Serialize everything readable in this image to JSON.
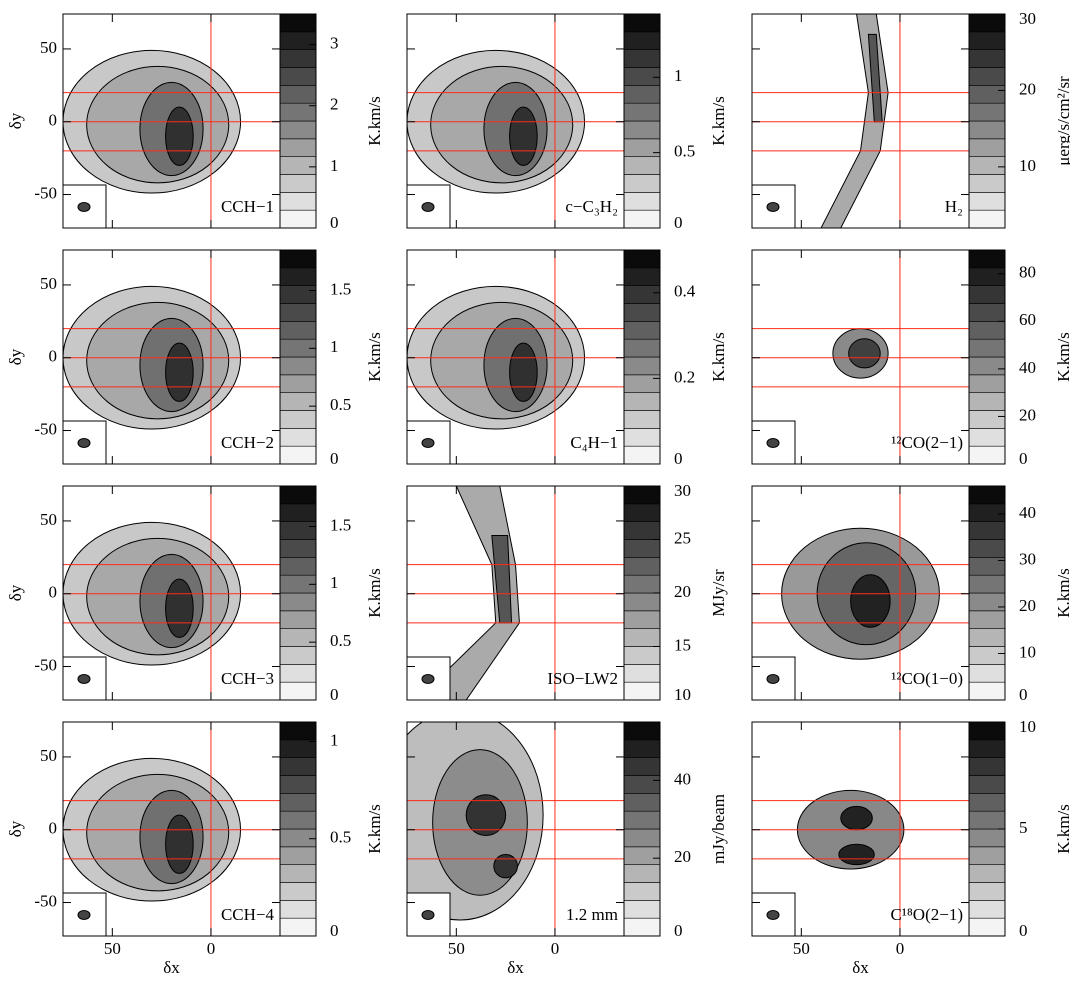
{
  "chart_data": [
    {
      "type": "map",
      "title": "CCH−1",
      "xlim": [
        75,
        -35
      ],
      "ylim": [
        -73,
        74
      ],
      "xticks": [
        50,
        0
      ],
      "yticks": [
        -50,
        0,
        50
      ],
      "show_xtick_labels": false,
      "show_ytick_labels": true,
      "ylabel": "δy",
      "hlines": [
        20,
        0,
        -20
      ],
      "vlines": [
        0
      ],
      "line_color": "#ff2a1a",
      "cbar_lim": [
        0,
        3.5
      ],
      "cbar_ticks": [
        0,
        1,
        2,
        3
      ],
      "cbar_label": "K.km/s"
    },
    {
      "type": "map",
      "title": "c−C₃H₂",
      "xlim": [
        75,
        -35
      ],
      "ylim": [
        -73,
        74
      ],
      "xticks": [
        50,
        0
      ],
      "yticks": [
        -50,
        0,
        50
      ],
      "show_xtick_labels": false,
      "show_ytick_labels": false,
      "hlines": [
        20,
        0,
        -20
      ],
      "vlines": [
        0
      ],
      "line_color": "#ff2a1a",
      "cbar_lim": [
        0,
        1.42
      ],
      "cbar_ticks": [
        0,
        0.5,
        1
      ],
      "cbar_label": "K.km/s"
    },
    {
      "type": "map",
      "title": "H₂",
      "xlim": [
        75,
        -35
      ],
      "ylim": [
        -73,
        74
      ],
      "xticks": [
        50,
        0
      ],
      "yticks": [
        -50,
        0,
        50
      ],
      "show_xtick_labels": false,
      "show_ytick_labels": false,
      "hlines": [
        20,
        0,
        -20
      ],
      "vlines": [
        0
      ],
      "line_color": "#ff2a1a",
      "cbar_lim": [
        2,
        30
      ],
      "cbar_ticks": [
        10,
        20,
        30
      ],
      "cbar_label": "μerg/s/cm²/sr"
    },
    {
      "type": "map",
      "title": "CCH−2",
      "xlim": [
        75,
        -35
      ],
      "ylim": [
        -73,
        74
      ],
      "xticks": [
        50,
        0
      ],
      "yticks": [
        -50,
        0,
        50
      ],
      "show_xtick_labels": false,
      "show_ytick_labels": true,
      "ylabel": "δy",
      "hlines": [
        20,
        0,
        -20
      ],
      "vlines": [
        0
      ],
      "line_color": "#ff2a1a",
      "cbar_lim": [
        0,
        1.85
      ],
      "cbar_ticks": [
        0,
        0.5,
        1,
        1.5
      ],
      "cbar_label": "K.km/s"
    },
    {
      "type": "map",
      "title": "C₄H−1",
      "xlim": [
        75,
        -35
      ],
      "ylim": [
        -73,
        74
      ],
      "xticks": [
        50,
        0
      ],
      "yticks": [
        -50,
        0,
        50
      ],
      "show_xtick_labels": false,
      "show_ytick_labels": false,
      "hlines": [
        20,
        0,
        -20
      ],
      "vlines": [
        0
      ],
      "line_color": "#ff2a1a",
      "cbar_lim": [
        0,
        0.5
      ],
      "cbar_ticks": [
        0,
        0.2,
        0.4
      ],
      "cbar_label": "K.km/s"
    },
    {
      "type": "map",
      "title": "¹²CO(2−1)",
      "xlim": [
        75,
        -35
      ],
      "ylim": [
        -73,
        74
      ],
      "xticks": [
        50,
        0
      ],
      "yticks": [
        -50,
        0,
        50
      ],
      "show_xtick_labels": false,
      "show_ytick_labels": false,
      "hlines": [
        20,
        0,
        -20
      ],
      "vlines": [
        0
      ],
      "line_color": "#ff2a1a",
      "cbar_lim": [
        0,
        90
      ],
      "cbar_ticks": [
        0,
        20,
        40,
        60,
        80
      ],
      "cbar_label": "K.km/s"
    },
    {
      "type": "map",
      "title": "CCH−3",
      "xlim": [
        75,
        -35
      ],
      "ylim": [
        -73,
        74
      ],
      "xticks": [
        50,
        0
      ],
      "yticks": [
        -50,
        0,
        50
      ],
      "show_xtick_labels": false,
      "show_ytick_labels": true,
      "ylabel": "δy",
      "hlines": [
        20,
        0,
        -20
      ],
      "vlines": [
        0
      ],
      "line_color": "#ff2a1a",
      "cbar_lim": [
        0,
        1.85
      ],
      "cbar_ticks": [
        0,
        0.5,
        1,
        1.5
      ],
      "cbar_label": "K.km/s"
    },
    {
      "type": "map",
      "title": "ISO−LW2",
      "xlim": [
        75,
        -35
      ],
      "ylim": [
        -73,
        74
      ],
      "xticks": [
        50,
        0
      ],
      "yticks": [
        -50,
        0,
        50
      ],
      "show_xtick_labels": false,
      "show_ytick_labels": false,
      "hlines": [
        20,
        0,
        -20
      ],
      "vlines": [
        0
      ],
      "line_color": "#ff2a1a",
      "cbar_lim": [
        10,
        30
      ],
      "cbar_ticks": [
        10,
        15,
        20,
        25,
        30
      ],
      "cbar_label": "MJy/sr"
    },
    {
      "type": "map",
      "title": "¹²CO(1−0)",
      "xlim": [
        75,
        -35
      ],
      "ylim": [
        -73,
        74
      ],
      "xticks": [
        50,
        0
      ],
      "yticks": [
        -50,
        0,
        50
      ],
      "show_xtick_labels": false,
      "show_ytick_labels": false,
      "hlines": [
        20,
        0,
        -20
      ],
      "vlines": [
        0
      ],
      "line_color": "#ff2a1a",
      "cbar_lim": [
        0,
        46
      ],
      "cbar_ticks": [
        0,
        10,
        20,
        30,
        40
      ],
      "cbar_label": "K.km/s"
    },
    {
      "type": "map",
      "title": "CCH−4",
      "xlim": [
        75,
        -35
      ],
      "ylim": [
        -73,
        74
      ],
      "xticks": [
        50,
        0
      ],
      "yticks": [
        -50,
        0,
        50
      ],
      "show_xtick_labels": true,
      "show_ytick_labels": true,
      "xlabel": "δx",
      "ylabel": "δy",
      "hlines": [
        20,
        0,
        -20
      ],
      "vlines": [
        0
      ],
      "line_color": "#ff2a1a",
      "cbar_lim": [
        0,
        1.1
      ],
      "cbar_ticks": [
        0,
        0.5,
        1
      ],
      "cbar_label": "K.km/s"
    },
    {
      "type": "map",
      "title": "1.2 mm",
      "xlim": [
        75,
        -35
      ],
      "ylim": [
        -73,
        74
      ],
      "xticks": [
        50,
        0
      ],
      "yticks": [
        -50,
        0,
        50
      ],
      "show_xtick_labels": true,
      "show_ytick_labels": false,
      "xlabel": "δx",
      "hlines": [
        20,
        0,
        -20
      ],
      "vlines": [
        0
      ],
      "line_color": "#ff2a1a",
      "cbar_lim": [
        0,
        55
      ],
      "cbar_ticks": [
        0,
        20,
        40
      ],
      "cbar_label": "mJy/beam"
    },
    {
      "type": "map",
      "title": "C¹⁸O(2−1)",
      "xlim": [
        75,
        -35
      ],
      "ylim": [
        -73,
        74
      ],
      "xticks": [
        50,
        0
      ],
      "yticks": [
        -50,
        0,
        50
      ],
      "show_xtick_labels": true,
      "show_ytick_labels": false,
      "xlabel": "δx",
      "hlines": [
        20,
        0,
        -20
      ],
      "vlines": [
        0
      ],
      "line_color": "#ff2a1a",
      "cbar_lim": [
        0,
        10
      ],
      "cbar_ticks": [
        0,
        5,
        10
      ],
      "cbar_label": "K.km/s"
    }
  ]
}
